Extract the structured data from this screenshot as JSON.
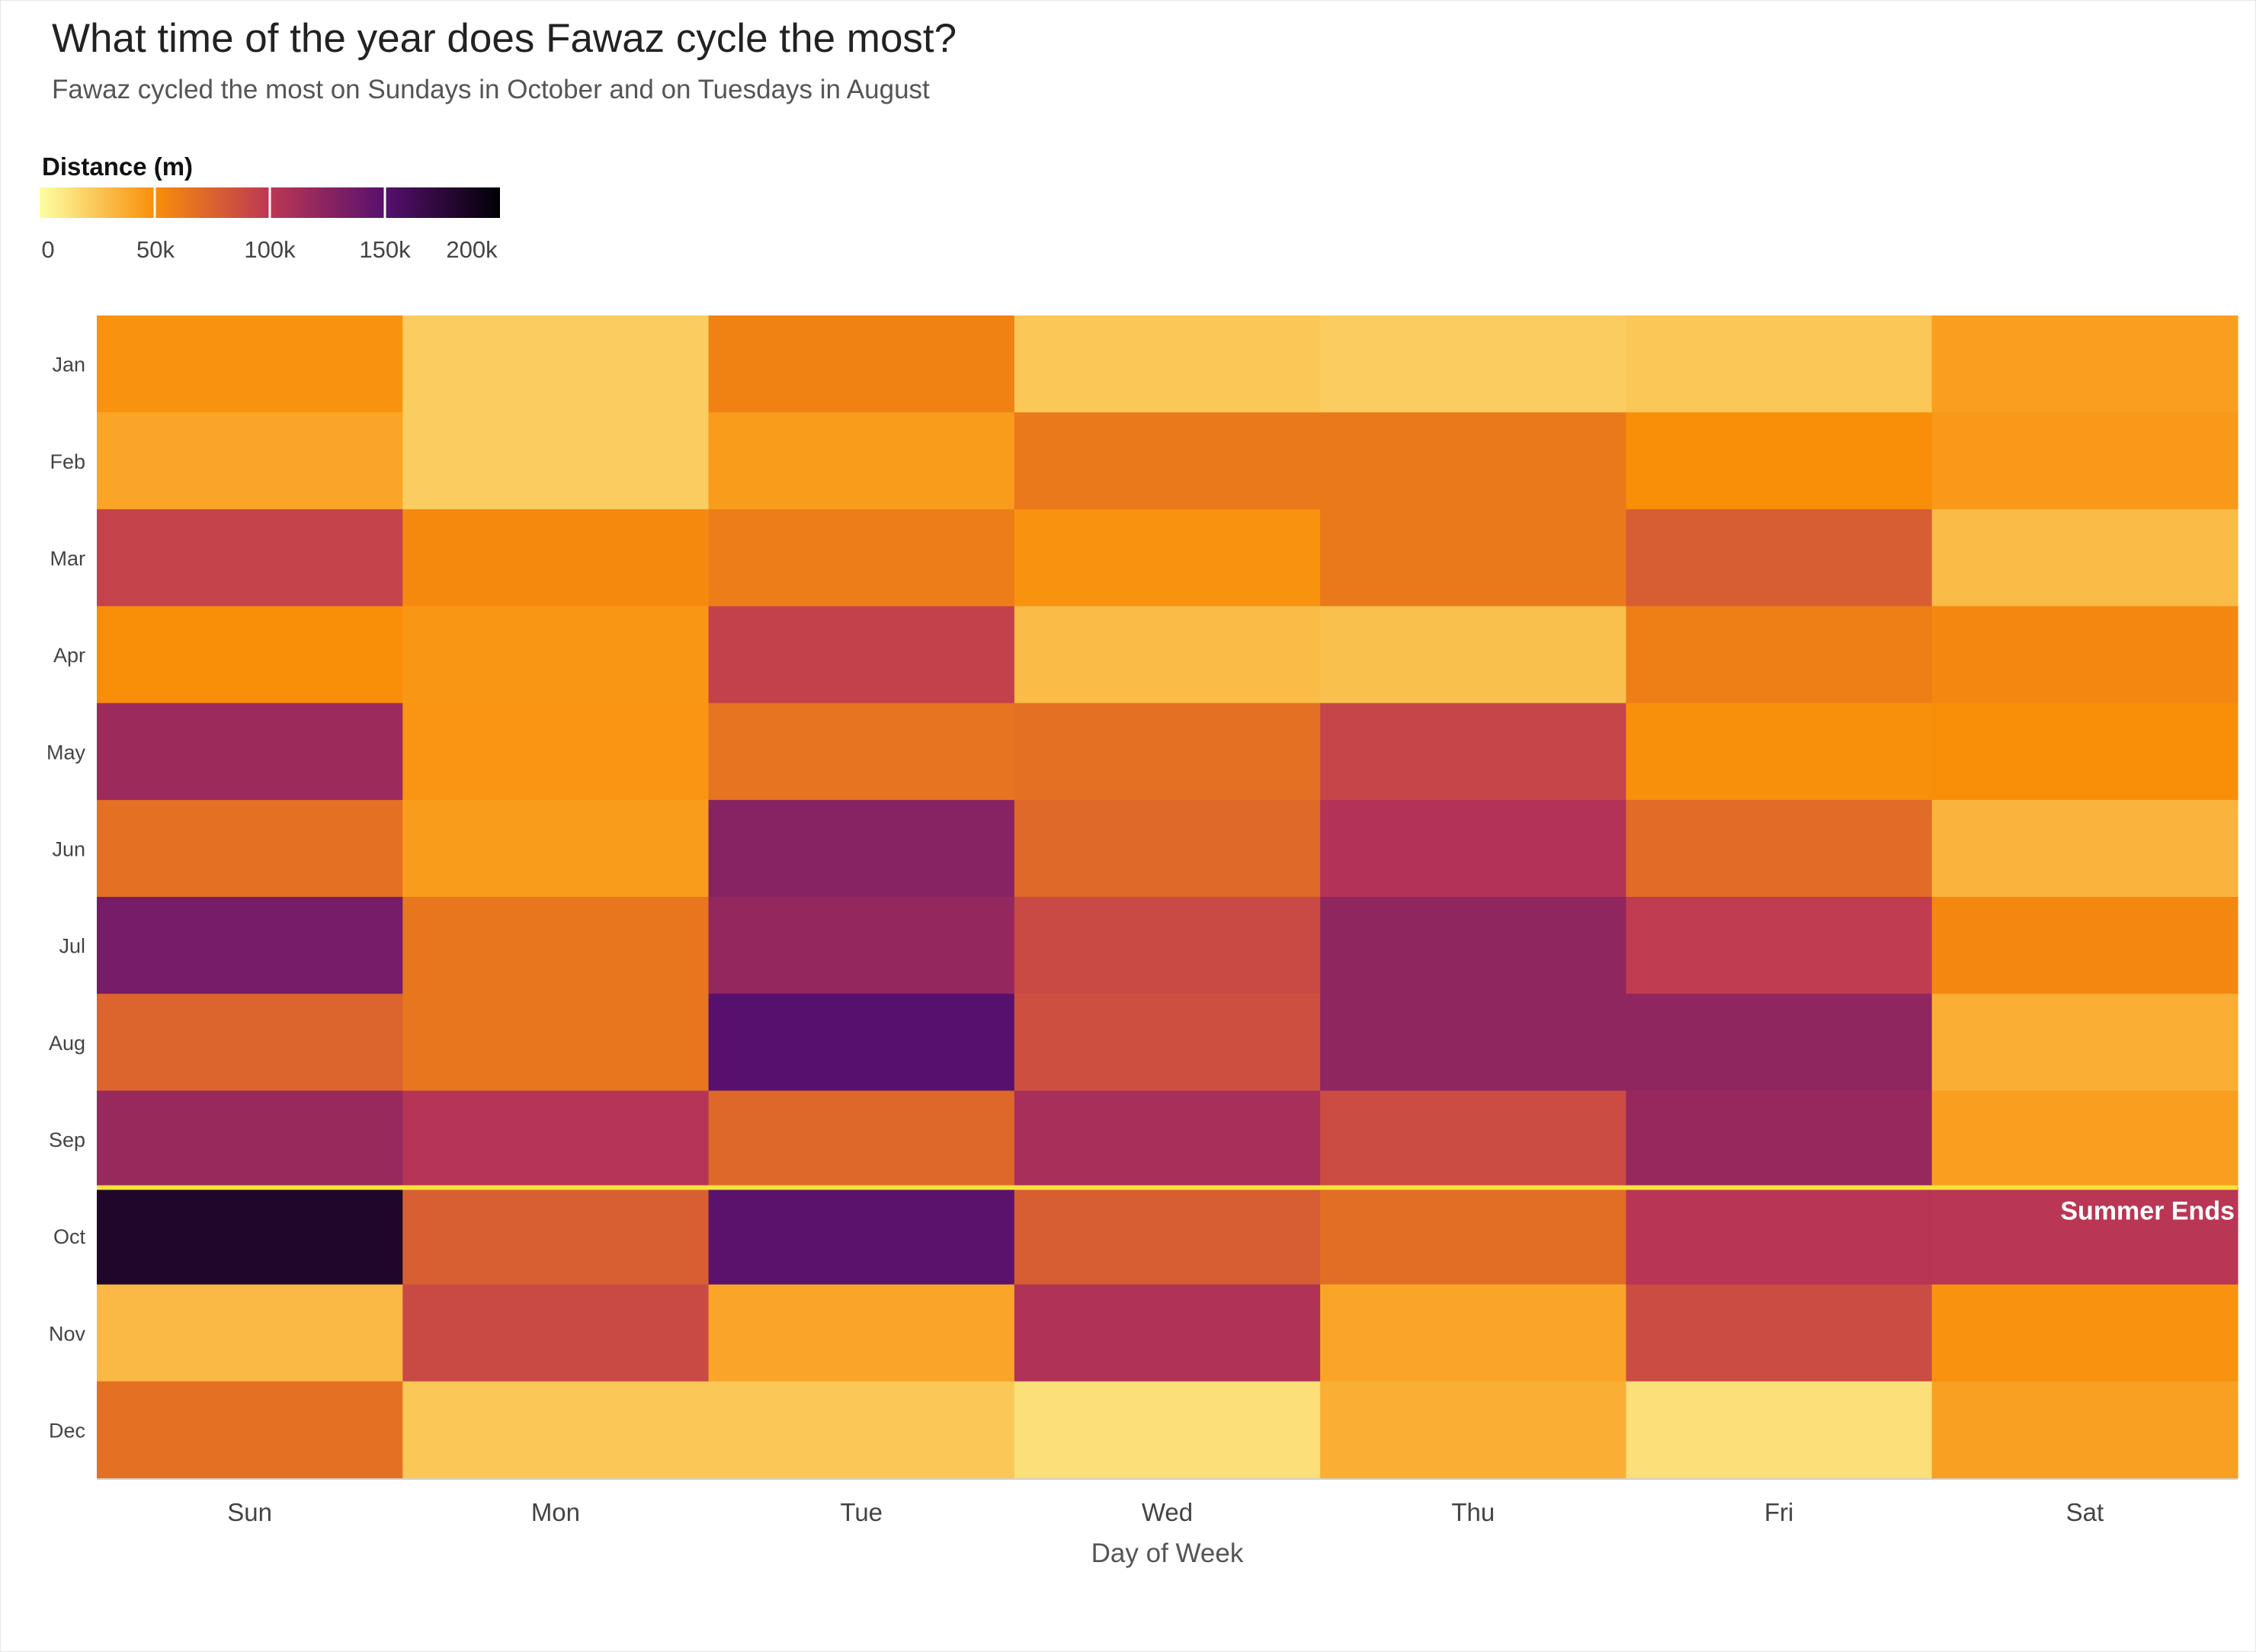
{
  "title": "What time of the year does Fawaz cycle the most?",
  "subtitle": "Fawaz cycled the most on Sundays in October and on Tuesdays in August",
  "legend": {
    "title": "Distance (m)",
    "ticks": [
      {
        "label": "0",
        "value": 0
      },
      {
        "label": "50k",
        "value": 50000
      },
      {
        "label": "100k",
        "value": 100000
      },
      {
        "label": "150k",
        "value": 150000
      },
      {
        "label": "200k",
        "value": 200000
      }
    ],
    "colorscale": [
      "#fcffa4",
      "#f98e09",
      "#bc3754",
      "#57106e",
      "#000004"
    ],
    "range": [
      0,
      200000
    ]
  },
  "chart_data": {
    "type": "heatmap",
    "title": "What time of the year does Fawaz cycle the most?",
    "subtitle": "Fawaz cycled the most on Sundays in October and on Tuesdays in August",
    "xlabel": "Day of Week",
    "ylabel": "",
    "x": [
      "Sun",
      "Mon",
      "Tue",
      "Wed",
      "Thu",
      "Fri",
      "Sat"
    ],
    "y": [
      "Jan",
      "Feb",
      "Mar",
      "Apr",
      "May",
      "Jun",
      "Jul",
      "Aug",
      "Sep",
      "Oct",
      "Nov",
      "Dec"
    ],
    "z": [
      [
        48000,
        22000,
        57000,
        25000,
        22000,
        25000,
        43000
      ],
      [
        40000,
        22000,
        44000,
        62000,
        62000,
        50000,
        45000
      ],
      [
        93000,
        53000,
        60000,
        48000,
        62000,
        78000,
        30000
      ],
      [
        50000,
        46000,
        94000,
        30000,
        28000,
        59000,
        54000
      ],
      [
        116000,
        47000,
        65000,
        67000,
        92000,
        49000,
        50000
      ],
      [
        67000,
        44000,
        126000,
        71000,
        105000,
        70000,
        33000
      ],
      [
        134000,
        64000,
        120000,
        89000,
        122000,
        97000,
        54000
      ],
      [
        74000,
        64000,
        150000,
        86000,
        122000,
        122000,
        36000
      ],
      [
        118000,
        103000,
        72000,
        110000,
        88000,
        119000,
        43000
      ],
      [
        182000,
        77000,
        148000,
        78000,
        69000,
        102000,
        101000
      ],
      [
        31000,
        89000,
        40000,
        106000,
        40000,
        88000,
        48000
      ],
      [
        67000,
        25000,
        25000,
        14000,
        36000,
        14000,
        42000
      ]
    ],
    "colorscale": "inferno (reversed)",
    "zlim": [
      0,
      200000
    ],
    "colorbar_title": "Distance (m)",
    "annotations": [
      {
        "text": "Summer Ends",
        "between": [
          "Sep",
          "Oct"
        ],
        "position": "right"
      }
    ],
    "grid": false,
    "legend_position": "top-left"
  }
}
